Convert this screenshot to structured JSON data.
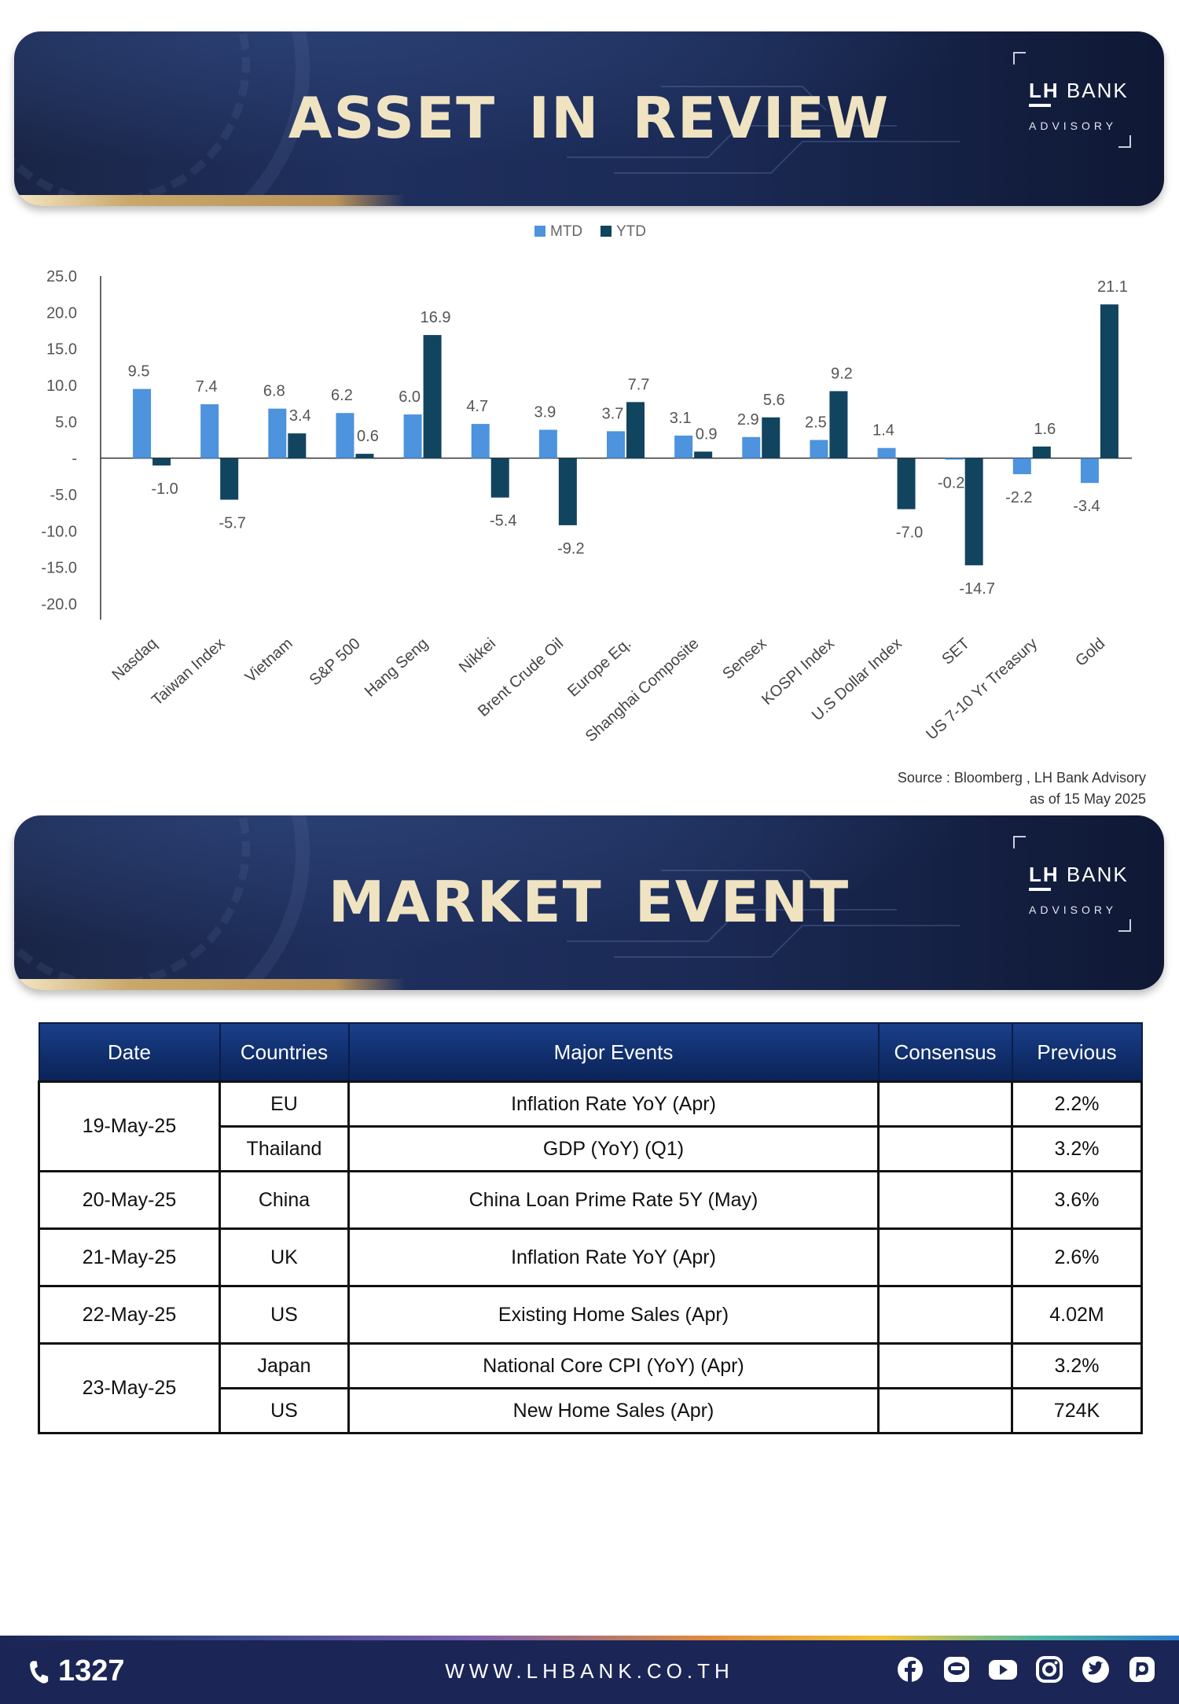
{
  "banner1": {
    "title": "ASSET IN REVIEW"
  },
  "banner2": {
    "title": "MARKET EVENT"
  },
  "brand": {
    "name_a": "LH",
    "name_b": " BANK",
    "sub": "ADVISORY"
  },
  "chart_data": {
    "type": "bar",
    "title": "",
    "xlabel": "",
    "ylabel": "",
    "ylim": [
      -20,
      25
    ],
    "yticks": [
      "25.0",
      "20.0",
      "15.0",
      "10.0",
      "5.0",
      "-",
      "-5.0",
      "-10.0",
      "-15.0",
      "-20.0"
    ],
    "ytick_values": [
      25,
      20,
      15,
      10,
      5,
      0,
      -5,
      -10,
      -15,
      -20
    ],
    "legend_position": "top-center",
    "grid": false,
    "categories": [
      "Nasdaq",
      "Taiwan Index",
      "Vietnam",
      "S&P 500",
      "Hang Seng",
      "Nikkei",
      "Brent Crude Oil",
      "Europe Eq.",
      "Shanghai Composite",
      "Sensex",
      "KOSPI Index",
      "U.S Dollar Index",
      "SET",
      "US 7-10 Yr Treasury",
      "Gold"
    ],
    "series": [
      {
        "name": "MTD",
        "color": "#4d93dd",
        "values": [
          9.5,
          7.4,
          6.8,
          6.2,
          6.0,
          4.7,
          3.9,
          3.7,
          3.1,
          2.9,
          2.5,
          1.4,
          -0.2,
          -2.2,
          -3.4
        ],
        "labels": [
          "9.5",
          "7.4",
          "6.8",
          "6.2",
          "6.0",
          "4.7",
          "3.9",
          "3.7",
          "3.1",
          "2.9",
          "2.5",
          "1.4",
          "-0.2",
          "-2.2",
          "-3.4"
        ]
      },
      {
        "name": "YTD",
        "color": "#11445f",
        "values": [
          -1.0,
          -5.7,
          3.4,
          0.6,
          16.9,
          -5.4,
          -9.2,
          7.7,
          0.9,
          5.6,
          9.2,
          -7.0,
          -14.7,
          1.6,
          21.1
        ],
        "labels": [
          "-1.0",
          "-5.7",
          "3.4",
          "0.6",
          "16.9",
          "-5.4",
          "-9.2",
          "7.7",
          "0.9",
          "5.6",
          "9.2",
          "-7.0",
          "-14.7",
          "1.6",
          "21.1"
        ]
      }
    ]
  },
  "source": {
    "line1": "Source : Bloomberg , LH Bank Advisory",
    "line2": "as of 15 May 2025"
  },
  "table": {
    "headers": [
      "Date",
      "Countries",
      "Major Events",
      "Consensus",
      "Previous"
    ],
    "groups": [
      {
        "date": "19-May-25",
        "rows": [
          {
            "country": "EU",
            "event": "Inflation Rate YoY (Apr)",
            "consensus": "",
            "previous": "2.2%"
          },
          {
            "country": "Thailand",
            "event": "GDP (YoY) (Q1)",
            "consensus": "",
            "previous": "3.2%"
          }
        ]
      },
      {
        "date": "20-May-25",
        "rows": [
          {
            "country": "China",
            "event": "China Loan Prime Rate 5Y (May)",
            "consensus": "",
            "previous": "3.6%"
          }
        ]
      },
      {
        "date": "21-May-25",
        "rows": [
          {
            "country": "UK",
            "event": "Inflation Rate YoY (Apr)",
            "consensus": "",
            "previous": "2.6%"
          }
        ]
      },
      {
        "date": "22-May-25",
        "rows": [
          {
            "country": "US",
            "event": "Existing Home Sales (Apr)",
            "consensus": "",
            "previous": "4.02M"
          }
        ]
      },
      {
        "date": "23-May-25",
        "rows": [
          {
            "country": "Japan",
            "event": "National Core CPI (YoY) (Apr)",
            "consensus": "",
            "previous": "3.2%"
          },
          {
            "country": "US",
            "event": "New Home Sales (Apr)",
            "consensus": "",
            "previous": "724K"
          }
        ]
      }
    ]
  },
  "footer": {
    "phone": "1327",
    "website": "WWW.LHBANK.CO.TH",
    "socials": [
      "facebook-icon",
      "line-icon",
      "youtube-icon",
      "instagram-icon",
      "twitter-icon",
      "blockdit-icon"
    ]
  }
}
